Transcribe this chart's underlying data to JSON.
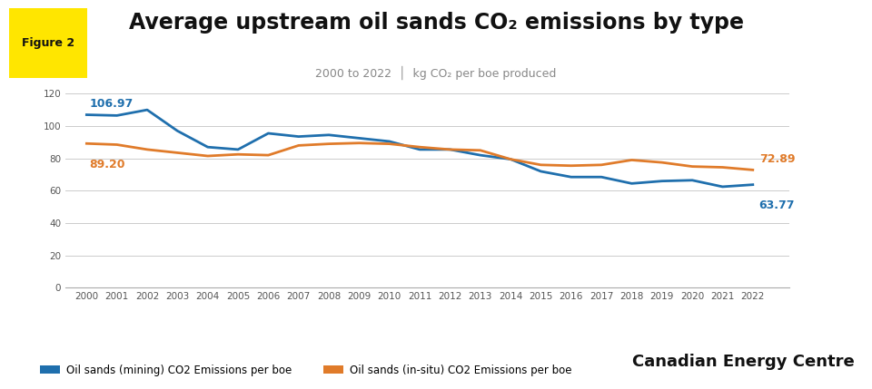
{
  "title": "Average upstream oil sands CO₂ emissions by type",
  "subtitle": "2000 to 2022  │  kg CO₂ per boe produced",
  "figure_label": "Figure 2",
  "years": [
    2000,
    2001,
    2002,
    2003,
    2004,
    2005,
    2006,
    2007,
    2008,
    2009,
    2010,
    2011,
    2012,
    2013,
    2014,
    2015,
    2016,
    2017,
    2018,
    2019,
    2020,
    2021,
    2022
  ],
  "mining": [
    106.97,
    106.5,
    110.0,
    97.0,
    87.0,
    85.5,
    95.5,
    93.5,
    94.5,
    92.5,
    90.5,
    85.5,
    85.5,
    82.0,
    79.5,
    72.0,
    68.5,
    68.5,
    64.5,
    66.0,
    66.5,
    62.5,
    63.77
  ],
  "insitu": [
    89.2,
    88.5,
    85.5,
    83.5,
    81.5,
    82.5,
    82.0,
    88.0,
    89.0,
    89.5,
    89.0,
    87.0,
    85.5,
    85.0,
    79.5,
    76.0,
    75.5,
    76.0,
    79.0,
    77.5,
    75.0,
    74.5,
    72.89
  ],
  "mining_color": "#1f6fad",
  "insitu_color": "#e07b2a",
  "mining_label": "Oil sands (mining) CO2 Emissions per boe",
  "insitu_label": "Oil sands (in-situ) CO2 Emissions per boe",
  "ylim": [
    0,
    125
  ],
  "yticks": [
    0,
    20,
    40,
    60,
    80,
    100,
    120
  ],
  "bg_color": "#ffffff",
  "grid_color": "#cccccc",
  "annotation_mining_start": "106.97",
  "annotation_insitu_start": "89.20",
  "annotation_mining_end": "63.77",
  "annotation_insitu_end": "72.89",
  "cec_label": "Canadian Energy Centre",
  "figure_box_color": "#FFE600",
  "title_fontsize": 17,
  "subtitle_fontsize": 9
}
